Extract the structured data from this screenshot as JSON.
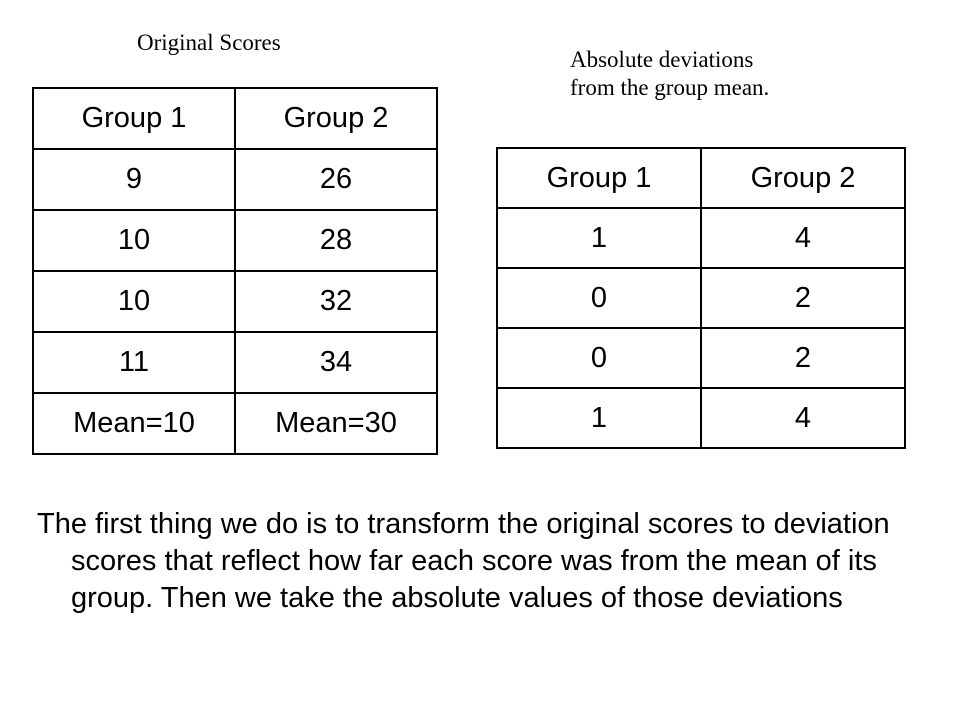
{
  "original_caption": "Original Scores",
  "absolute_caption_line1": "Absolute deviations",
  "absolute_caption_line2": "from the group mean.",
  "original_table": {
    "headers": [
      "Group 1",
      "Group 2"
    ],
    "rows": [
      [
        "9",
        "26"
      ],
      [
        "10",
        "28"
      ],
      [
        "10",
        "32"
      ],
      [
        "11",
        "34"
      ],
      [
        "Mean=10",
        "Mean=30"
      ]
    ]
  },
  "absolute_table": {
    "headers": [
      "Group 1",
      "Group 2"
    ],
    "rows": [
      [
        "1",
        "4"
      ],
      [
        "0",
        "2"
      ],
      [
        "0",
        "2"
      ],
      [
        "1",
        "4"
      ]
    ]
  },
  "explanation": "The first thing we do is to transform the original scores to deviation scores that reflect how far each score was from the mean of its group.  Then we take the absolute values of those deviations"
}
